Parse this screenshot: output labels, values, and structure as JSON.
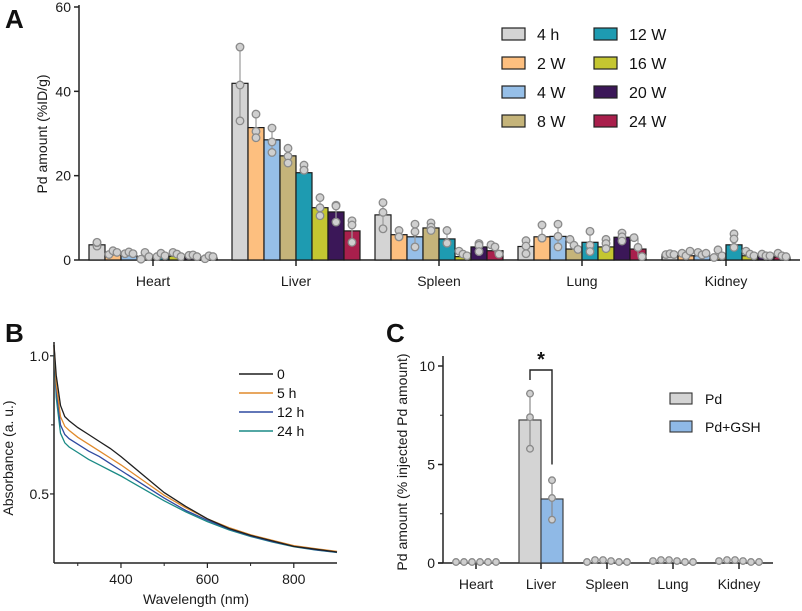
{
  "panels": {
    "a": "A",
    "b": "B",
    "c": "C"
  },
  "chart_data": [
    {
      "id": "A",
      "type": "bar",
      "title": "",
      "xlabel": "",
      "ylabel": "Pd amount (%ID/g)",
      "ylim": [
        0,
        60
      ],
      "yticks": [
        0,
        20,
        40,
        60
      ],
      "grid": false,
      "legend_position": "top-right",
      "categories": [
        "Heart",
        "Liver",
        "Spleen",
        "Lung",
        "Kidney"
      ],
      "series": [
        {
          "name": "4 h",
          "color": "#d4d4d4",
          "values": [
            3.6,
            41.9,
            10.7,
            3.2,
            1.3
          ],
          "points": [
            [
              3.3,
              4.1,
              4.2
            ],
            [
              50.5,
              41.5,
              33.0
            ],
            [
              13.6,
              11.3,
              7.4
            ],
            [
              4.6,
              1.5,
              3.3
            ],
            [
              1.3,
              1.5,
              1.3
            ]
          ]
        },
        {
          "name": "2 W",
          "color": "#fdbf7f",
          "values": [
            1.2,
            31.4,
            6.0,
            5.5,
            1.0
          ],
          "points": [
            [
              1.3,
              2.2,
              1.8
            ],
            [
              34.6,
              30.5,
              29.0
            ],
            [
              7.0,
              5.5,
              5.5
            ],
            [
              8.3,
              5.2,
              5.2
            ],
            [
              1.6,
              1.0,
              2.1
            ]
          ]
        },
        {
          "name": "4 W",
          "color": "#96bfe8",
          "values": [
            1.0,
            28.5,
            5.5,
            5.6,
            1.0
          ],
          "points": [
            [
              1.5,
              1.9,
              1.5
            ],
            [
              31.3,
              28.0,
              25.5
            ],
            [
              8.5,
              6.7,
              3.1
            ],
            [
              8.5,
              5.6,
              3.1
            ],
            [
              1.8,
              1.2,
              1.6
            ]
          ]
        },
        {
          "name": "8 W",
          "color": "#c5b47a",
          "values": [
            0.5,
            24.7,
            7.6,
            2.6,
            0.7
          ],
          "points": [
            [
              0.2,
              1.8,
              0.8
            ],
            [
              26.5,
              24.6,
              23.0
            ],
            [
              8.8,
              7.8,
              7.0
            ],
            [
              4.9,
              3.5,
              2.5
            ],
            [
              0.6,
              2.4,
              1.0
            ]
          ]
        },
        {
          "name": "12 W",
          "color": "#1e9bb1",
          "values": [
            0.8,
            20.7,
            5.0,
            4.2,
            3.6
          ],
          "points": [
            [
              0.8,
              1.6,
              1.0
            ],
            [
              22.5,
              21.3,
              21.3
            ],
            [
              7.0,
              4.0,
              4.0
            ],
            [
              6.8,
              3.5,
              2.0
            ],
            [
              6.2,
              3.0,
              5.0
            ]
          ]
        },
        {
          "name": "16 W",
          "color": "#c4c631",
          "values": [
            0.9,
            12.4,
            0.8,
            3.1,
            1.0
          ],
          "points": [
            [
              1.8,
              1.4,
              0.8
            ],
            [
              14.8,
              12.4,
              10.5
            ],
            [
              2.1,
              1.4,
              1.0
            ],
            [
              4.9,
              3.9,
              2.7
            ],
            [
              2.1,
              1.4,
              1.0
            ]
          ]
        },
        {
          "name": "20 W",
          "color": "#3b1758",
          "values": [
            0.8,
            11.4,
            3.1,
            5.4,
            1.0
          ],
          "points": [
            [
              1.1,
              1.2,
              0.8
            ],
            [
              13.0,
              12.8,
              9.0
            ],
            [
              3.9,
              3.5,
              2.0
            ],
            [
              6.4,
              5.5,
              4.5
            ],
            [
              1.4,
              1.0,
              1.0
            ]
          ]
        },
        {
          "name": "24 W",
          "color": "#a91f4c",
          "values": [
            0.5,
            6.9,
            2.2,
            2.6,
            0.7
          ],
          "points": [
            [
              0.3,
              1.0,
              0.8
            ],
            [
              9.3,
              8.3,
              4.2
            ],
            [
              3.6,
              3.1,
              1.4
            ],
            [
              5.3,
              3.0,
              0.8
            ],
            [
              1.6,
              1.0,
              0.8
            ]
          ]
        }
      ]
    },
    {
      "id": "B",
      "type": "line",
      "title": "",
      "xlabel": "Wavelength (nm)",
      "ylabel": "Absorbance (a. u.)",
      "xlim": [
        245,
        900
      ],
      "ylim": [
        0.25,
        1.05
      ],
      "xticks": [
        400,
        600,
        800
      ],
      "yticks": [
        0.5,
        1.0
      ],
      "ytick_labels": [
        "0.5",
        "1.0"
      ],
      "grid": false,
      "legend_position": "top-right",
      "x": [
        245,
        250,
        260,
        270,
        280,
        300,
        325,
        350,
        375,
        400,
        450,
        500,
        550,
        600,
        650,
        700,
        750,
        800,
        850,
        900
      ],
      "series": [
        {
          "name": "0",
          "color": "#1f1f1f",
          "values": [
            1.04,
            0.93,
            0.82,
            0.78,
            0.765,
            0.74,
            0.715,
            0.69,
            0.665,
            0.635,
            0.57,
            0.505,
            0.455,
            0.41,
            0.375,
            0.35,
            0.33,
            0.31,
            0.3,
            0.29
          ]
        },
        {
          "name": "5 h",
          "color": "#e08a2c",
          "values": [
            1.04,
            0.9,
            0.78,
            0.745,
            0.73,
            0.705,
            0.68,
            0.655,
            0.63,
            0.605,
            0.55,
            0.495,
            0.45,
            0.41,
            0.378,
            0.352,
            0.332,
            0.313,
            0.302,
            0.292
          ]
        },
        {
          "name": "12 h",
          "color": "#2f4aa0",
          "values": [
            1.04,
            0.88,
            0.75,
            0.715,
            0.7,
            0.68,
            0.655,
            0.635,
            0.61,
            0.585,
            0.535,
            0.485,
            0.44,
            0.405,
            0.373,
            0.348,
            0.328,
            0.31,
            0.298,
            0.289
          ]
        },
        {
          "name": "24 h",
          "color": "#1a8a85",
          "values": [
            1.04,
            0.85,
            0.72,
            0.685,
            0.67,
            0.65,
            0.625,
            0.605,
            0.585,
            0.565,
            0.52,
            0.475,
            0.435,
            0.4,
            0.37,
            0.346,
            0.326,
            0.309,
            0.297,
            0.288
          ]
        }
      ]
    },
    {
      "id": "C",
      "type": "bar",
      "title": "",
      "xlabel": "",
      "ylabel": "Pd amount (% injected Pd amount)",
      "ylim": [
        0,
        10.5
      ],
      "yticks": [
        0,
        5,
        10
      ],
      "grid": false,
      "legend_position": "right",
      "categories": [
        "Heart",
        "Liver",
        "Spleen",
        "Lung",
        "Kidney"
      ],
      "annotation": {
        "text": "*",
        "between": [
          "Pd",
          "Pd+GSH"
        ],
        "category": "Liver"
      },
      "series": [
        {
          "name": "Pd",
          "color": "#d4d4d4",
          "values": [
            0.0,
            7.26,
            0.05,
            0.05,
            0.05
          ],
          "points": [
            [
              0.0,
              0.0,
              0.0
            ],
            [
              8.6,
              7.4,
              5.8
            ],
            [
              0.0,
              0.1,
              0.1
            ],
            [
              0.05,
              0.1,
              0.1
            ],
            [
              0.05,
              0.1,
              0.1
            ]
          ]
        },
        {
          "name": "Pd+GSH",
          "color": "#8fb9e6",
          "values": [
            0.0,
            3.25,
            0.05,
            0.05,
            0.05
          ],
          "points": [
            [
              0.0,
              0.0,
              0.0
            ],
            [
              4.2,
              3.3,
              2.2
            ],
            [
              0.05,
              0.0,
              0.0
            ],
            [
              0.05,
              0.0,
              0.0
            ],
            [
              0.05,
              0.0,
              0.0
            ]
          ]
        }
      ]
    }
  ]
}
